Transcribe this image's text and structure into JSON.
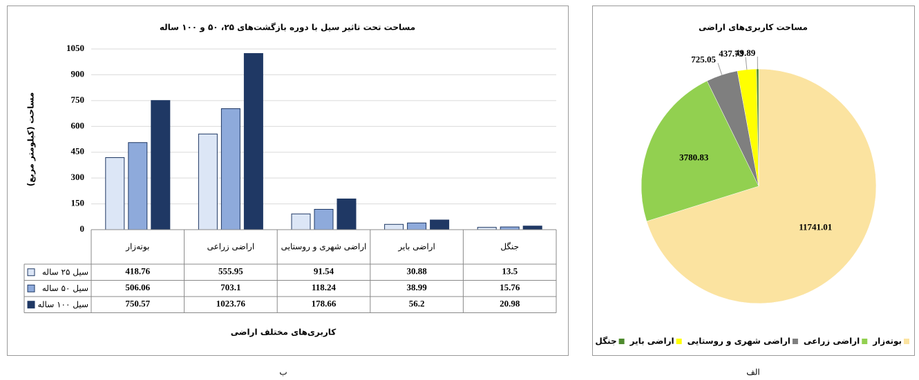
{
  "chart_data": [
    {
      "type": "bar",
      "panel_label": "ب",
      "title": "مساحت تحت تاثیر سیل با دوره بازگشت‌های ۲۵، ۵۰ و ۱۰۰ ساله",
      "y_label": "مساحت (کیلومتر مربع)",
      "x_label": "کاربری‌های مختلف اراضی",
      "categories": [
        "بوته‌زار",
        "اراضی زراعی",
        "اراضی شهری و روستایی",
        "اراضی بایر",
        "جنگل"
      ],
      "series": [
        {
          "name": "سیل ۲۵ ساله",
          "color": "#dce6f6",
          "values": [
            418.76,
            555.95,
            91.54,
            30.88,
            13.5
          ]
        },
        {
          "name": "سیل ۵۰ ساله",
          "color": "#8eaadb",
          "values": [
            506.06,
            703.1,
            118.24,
            38.99,
            15.76
          ]
        },
        {
          "name": "سیل ۱۰۰ ساله",
          "color": "#1f3864",
          "values": [
            750.57,
            1023.76,
            178.66,
            56.2,
            20.98
          ]
        }
      ],
      "ylim": [
        0,
        1050
      ],
      "yticks": [
        0,
        150,
        300,
        450,
        600,
        750,
        900,
        1050
      ],
      "grid": true,
      "data_table": true
    },
    {
      "type": "pie",
      "panel_label": "الف",
      "title": "مساحت کاربری‌های اراضی",
      "categories": [
        "بوته‌زار",
        "اراضی زراعی",
        "اراضی شهری و روستایی",
        "اراضی بایر",
        "جنگل"
      ],
      "values": [
        11741.01,
        3780.83,
        725.05,
        437.73,
        49.89
      ],
      "colors": [
        "#fbe3a0",
        "#92d050",
        "#7f7f7f",
        "#ffff00",
        "#4e8a2e"
      ],
      "legend": "bottom"
    }
  ]
}
